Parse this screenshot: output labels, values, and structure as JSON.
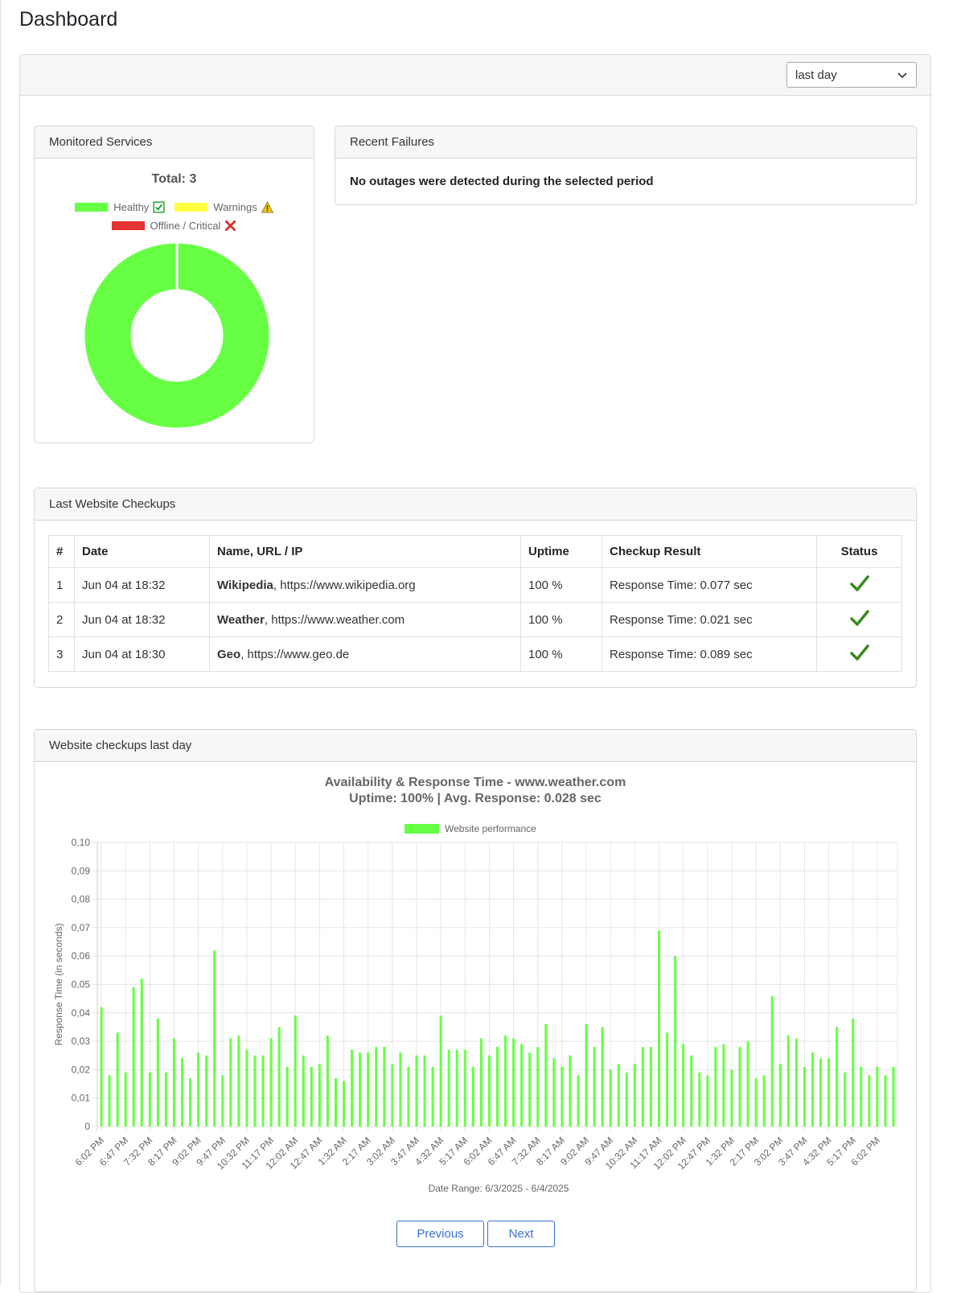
{
  "page": {
    "title": "Dashboard"
  },
  "filter": {
    "selected": "last day"
  },
  "monitored": {
    "header": "Monitored Services",
    "total": "Total: 3",
    "legend": [
      {
        "label": "Healthy",
        "color": "#66ff44",
        "icon": "check-box-icon"
      },
      {
        "label": "Warnings",
        "color": "#ffff44",
        "icon": "warning-icon"
      },
      {
        "label": "Offline / Critical",
        "color": "#e63333",
        "icon": "cross-icon"
      }
    ],
    "donut": {
      "healthy": 3,
      "warnings": 0,
      "offline": 0
    }
  },
  "failures": {
    "header": "Recent Failures",
    "message": "No outages were detected during the selected period"
  },
  "checkups": {
    "header": "Last Website Checkups",
    "columns": [
      "#",
      "Date",
      "Name, URL / IP",
      "Uptime",
      "Checkup Result",
      "Status"
    ],
    "rows": [
      {
        "num": "1",
        "date": "Jun 04 at 18:32",
        "name": "Wikipedia",
        "url": ", https://www.wikipedia.org",
        "uptime": "100 %",
        "result": "Response Time: 0.077 sec",
        "status": "check-icon"
      },
      {
        "num": "2",
        "date": "Jun 04 at 18:32",
        "name": "Weather",
        "url": ", https://www.weather.com",
        "uptime": "100 %",
        "result": "Response Time: 0.021 sec",
        "status": "check-icon"
      },
      {
        "num": "3",
        "date": "Jun 04 at 18:30",
        "name": "Geo",
        "url": ", https://www.geo.de",
        "uptime": "100 %",
        "result": "Response Time: 0.089 sec",
        "status": "check-icon"
      }
    ]
  },
  "chart_section": {
    "header": "Website checkups last day"
  },
  "chart_data": {
    "type": "bar",
    "title": "Availability & Response Time - www.weather.com",
    "subtitle": "Uptime:  100% | Avg. Response: 0.028 sec",
    "legend": "Website performance",
    "color": "#66ff44",
    "ylabel": "Response Time (in seconds)",
    "xlabel": "Date Range: 6/3/2025 - 6/4/2025",
    "ylim": [
      0,
      0.1
    ],
    "yticks": [
      "0",
      "0,01",
      "0,02",
      "0,03",
      "0,04",
      "0,05",
      "0,06",
      "0,07",
      "0,08",
      "0,09",
      "0,10"
    ],
    "xticks": [
      "6:02 PM",
      "6:47 PM",
      "7:32 PM",
      "8:17 PM",
      "9:02 PM",
      "9:47 PM",
      "10:32 PM",
      "11:17 PM",
      "12:02 AM",
      "12:47 AM",
      "1:32 AM",
      "2:17 AM",
      "3:02 AM",
      "3:47 AM",
      "4:32 AM",
      "5:17 AM",
      "6:02 AM",
      "6:47 AM",
      "7:32 AM",
      "8:17 AM",
      "9:02 AM",
      "9:47 AM",
      "10:32 AM",
      "11:17 AM",
      "12:02 PM",
      "12:47 PM",
      "1:32 PM",
      "2:17 PM",
      "3:02 PM",
      "3:47 PM",
      "4:32 PM",
      "5:17 PM",
      "6:02 PM"
    ],
    "values": [
      0.042,
      0.018,
      0.033,
      0.019,
      0.049,
      0.052,
      0.019,
      0.038,
      0.019,
      0.031,
      0.024,
      0.017,
      0.026,
      0.025,
      0.062,
      0.018,
      0.031,
      0.032,
      0.027,
      0.025,
      0.025,
      0.031,
      0.035,
      0.021,
      0.039,
      0.025,
      0.021,
      0.022,
      0.032,
      0.017,
      0.016,
      0.027,
      0.026,
      0.026,
      0.028,
      0.028,
      0.022,
      0.026,
      0.021,
      0.025,
      0.025,
      0.021,
      0.039,
      0.027,
      0.027,
      0.027,
      0.021,
      0.031,
      0.025,
      0.028,
      0.032,
      0.031,
      0.029,
      0.026,
      0.028,
      0.036,
      0.024,
      0.021,
      0.025,
      0.018,
      0.036,
      0.028,
      0.035,
      0.02,
      0.022,
      0.019,
      0.022,
      0.028,
      0.028,
      0.069,
      0.033,
      0.06,
      0.029,
      0.025,
      0.019,
      0.018,
      0.028,
      0.029,
      0.02,
      0.028,
      0.03,
      0.017,
      0.018,
      0.046,
      0.022,
      0.032,
      0.031,
      0.021,
      0.026,
      0.024,
      0.024,
      0.035,
      0.019,
      0.038,
      0.021,
      0.018,
      0.021,
      0.018,
      0.021
    ]
  },
  "pagination": {
    "previous": "Previous",
    "next": "Next"
  }
}
